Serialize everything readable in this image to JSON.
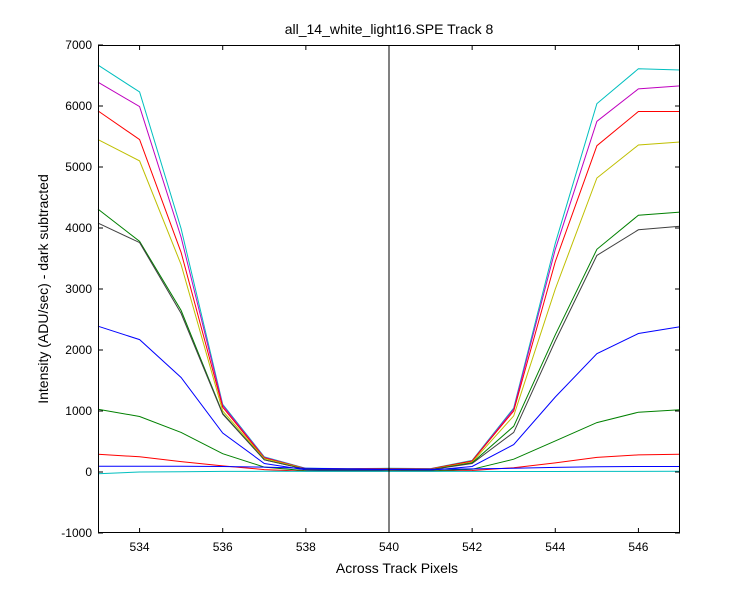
{
  "window": {
    "background": "#ffffff"
  },
  "chart_data": {
    "type": "line",
    "title": "all_14_white_light16.SPE   Track 8",
    "xlabel": "Across Track Pixels",
    "ylabel": "Intensity (ADU/sec) - dark subtracted",
    "xlim": [
      533,
      547
    ],
    "ylim": [
      -1000,
      7000
    ],
    "xticks": [
      534,
      536,
      538,
      540,
      542,
      544,
      546
    ],
    "yticks": [
      -1000,
      0,
      1000,
      2000,
      3000,
      4000,
      5000,
      6000,
      7000
    ],
    "grid": false,
    "legend": "none",
    "reference_line_x": 540,
    "x": [
      533,
      534,
      535,
      536,
      537,
      538,
      539,
      540,
      541,
      542,
      543,
      544,
      545,
      546,
      547
    ],
    "series": [
      {
        "color": "#00bfbf",
        "values": [
          6670,
          6230,
          3990,
          1110,
          250,
          60,
          55,
          60,
          55,
          190,
          1050,
          3750,
          6040,
          6610,
          6590
        ]
      },
      {
        "color": "#bf00bf",
        "values": [
          6390,
          5990,
          3850,
          1090,
          240,
          55,
          50,
          55,
          50,
          180,
          1030,
          3650,
          5750,
          6280,
          6330
        ]
      },
      {
        "color": "#ff0000",
        "values": [
          5920,
          5450,
          3600,
          1060,
          230,
          55,
          50,
          55,
          50,
          180,
          1000,
          3450,
          5350,
          5910,
          5910
        ]
      },
      {
        "color": "#bfbf00",
        "values": [
          5450,
          5100,
          3400,
          1000,
          220,
          50,
          45,
          50,
          45,
          160,
          920,
          3000,
          4820,
          5360,
          5410
        ]
      },
      {
        "color": "#008000",
        "values": [
          4310,
          3780,
          2650,
          960,
          200,
          45,
          40,
          45,
          40,
          150,
          750,
          2250,
          3650,
          4210,
          4260
        ]
      },
      {
        "color": "#404040",
        "values": [
          4080,
          3760,
          2600,
          950,
          200,
          45,
          40,
          45,
          40,
          140,
          650,
          2150,
          3550,
          3970,
          4030
        ]
      },
      {
        "color": "#0000ff",
        "values": [
          2390,
          2170,
          1550,
          640,
          140,
          35,
          30,
          35,
          30,
          90,
          450,
          1230,
          1940,
          2270,
          2380
        ]
      },
      {
        "color": "#008000",
        "values": [
          1030,
          910,
          650,
          300,
          80,
          20,
          18,
          20,
          18,
          45,
          210,
          510,
          810,
          980,
          1020
        ]
      },
      {
        "color": "#ff0000",
        "values": [
          290,
          250,
          170,
          100,
          40,
          12,
          10,
          12,
          10,
          25,
          70,
          150,
          240,
          280,
          290
        ]
      },
      {
        "color": "#0000ff",
        "values": [
          95,
          95,
          95,
          90,
          80,
          60,
          50,
          45,
          45,
          50,
          60,
          75,
          85,
          90,
          90
        ]
      },
      {
        "color": "#00bfbf",
        "values": [
          -30,
          0,
          5,
          10,
          12,
          10,
          10,
          10,
          10,
          10,
          8,
          8,
          10,
          10,
          12
        ]
      }
    ]
  }
}
